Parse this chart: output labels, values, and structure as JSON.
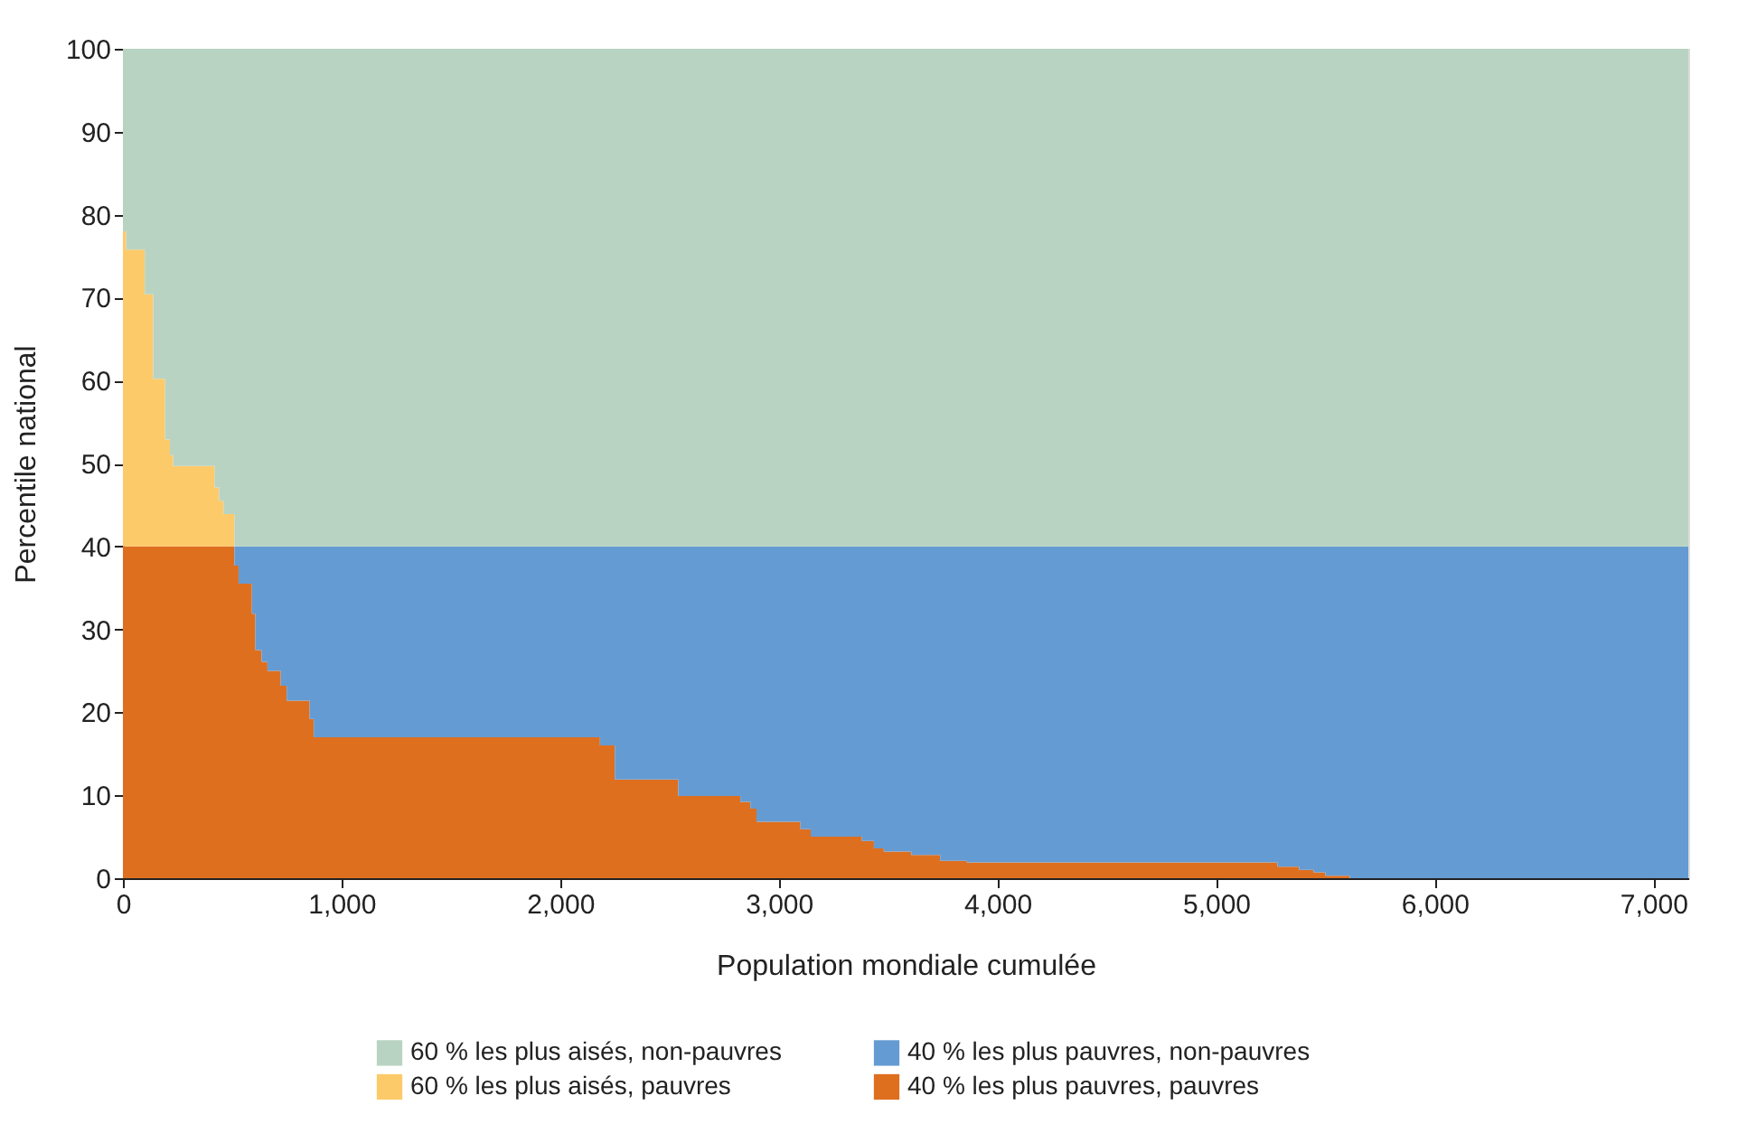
{
  "chart_data": {
    "type": "area",
    "stacked": true,
    "xlabel": "Population mondiale cumulée",
    "ylabel": "Percentile national",
    "x": [
      0,
      15,
      100,
      138,
      193,
      215,
      230,
      419,
      440,
      460,
      510,
      529,
      590,
      606,
      634,
      661,
      722,
      749,
      854,
      873,
      2182,
      2250,
      2540,
      2824,
      2870,
      2898,
      3099,
      3146,
      3380,
      3435,
      3480,
      3606,
      3738,
      3860,
      5281,
      5380,
      5446,
      5500,
      5612,
      7160
    ],
    "series": [
      {
        "name": "40 % les plus pauvres, pauvres",
        "color": "#de6f1f",
        "values": [
          40,
          40,
          40,
          40,
          40,
          40,
          40,
          40,
          40,
          40,
          37.7,
          35.5,
          31.9,
          27.5,
          26.1,
          25,
          23.2,
          21.4,
          19.2,
          17,
          16,
          11.9,
          9.9,
          9.2,
          8.4,
          6.8,
          5.9,
          5,
          4.5,
          3.6,
          3.2,
          2.8,
          2.1,
          1.9,
          1.4,
          1,
          0.7,
          0.3,
          0,
          0
        ]
      },
      {
        "name": "40 % les plus pauvres, non-pauvres",
        "color": "#659bd3",
        "values": [
          null,
          null,
          null,
          null,
          null,
          null,
          null,
          null,
          null,
          0,
          2.3,
          4.5,
          8.1,
          12.5,
          13.9,
          15,
          16.8,
          18.6,
          20.8,
          23,
          24,
          28.1,
          30.1,
          30.8,
          31.6,
          33.2,
          34.1,
          35,
          35.5,
          36.4,
          36.8,
          37.2,
          37.9,
          38.1,
          38.6,
          39,
          39.3,
          39.7,
          40,
          40
        ]
      },
      {
        "name": "60 % les plus aisés, pauvres",
        "color": "#fdca6a",
        "values": [
          38,
          35.8,
          30.4,
          20.2,
          12.9,
          11,
          9.7,
          7.1,
          5.5,
          3.9,
          0,
          null,
          null,
          null,
          null,
          null,
          null,
          null,
          null,
          null,
          null,
          null,
          null,
          null,
          null,
          null,
          null,
          null,
          null,
          null,
          null,
          null,
          null,
          null,
          null,
          null,
          null,
          null,
          null,
          null
        ]
      },
      {
        "name": "60 % les plus aisés, non-pauvres",
        "color": "#b9d3c2",
        "values": [
          22,
          24.2,
          29.6,
          39.8,
          47.1,
          49,
          50.3,
          52.9,
          54.5,
          56.1,
          60,
          60,
          60,
          60,
          60,
          60,
          60,
          60,
          60,
          60,
          60,
          60,
          60,
          60,
          60,
          60,
          60,
          60,
          60,
          60,
          60,
          60,
          60,
          60,
          60,
          60,
          60,
          60,
          60,
          60
        ]
      }
    ],
    "xlim": [
      0,
      7160
    ],
    "xticks": [
      0,
      {
        "value": 1000,
        "label": "1,000"
      },
      {
        "value": 2000,
        "label": "2,000"
      },
      {
        "value": 3000,
        "label": "3,000"
      },
      {
        "value": 4000,
        "label": "4,000"
      },
      {
        "value": 5000,
        "label": "5,000"
      },
      {
        "value": 6000,
        "label": "6,000"
      },
      {
        "value": 7000,
        "label": "7,000"
      }
    ],
    "ylim": [
      0,
      100
    ],
    "yticks": [
      0,
      10,
      20,
      30,
      40,
      50,
      60,
      70,
      80,
      90,
      100
    ],
    "grid": false,
    "legend": "bottom"
  }
}
